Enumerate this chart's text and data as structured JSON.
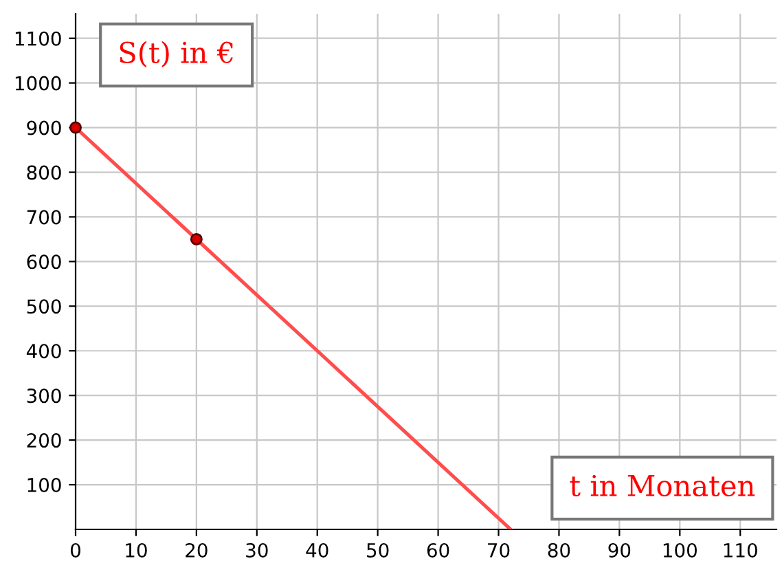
{
  "chart_data": {
    "type": "line",
    "xlabel": "t in Monaten",
    "ylabel": "S(t) in €",
    "series": [
      {
        "color": "#ff4d4d",
        "x": [
          0,
          72
        ],
        "values": [
          900,
          0
        ]
      },
      {
        "type": "scatter",
        "color": "#d40000",
        "x": [
          0,
          20
        ],
        "values": [
          900,
          650
        ],
        "marker": "circle"
      }
    ],
    "xlim": [
      0,
      116
    ],
    "ylim": [
      0,
      1155
    ],
    "xticks": [
      0,
      10,
      20,
      30,
      40,
      50,
      60,
      70,
      80,
      90,
      100,
      110
    ],
    "yticks": [
      100,
      200,
      300,
      400,
      500,
      600,
      700,
      800,
      900,
      1000,
      1100
    ],
    "grid": true
  }
}
